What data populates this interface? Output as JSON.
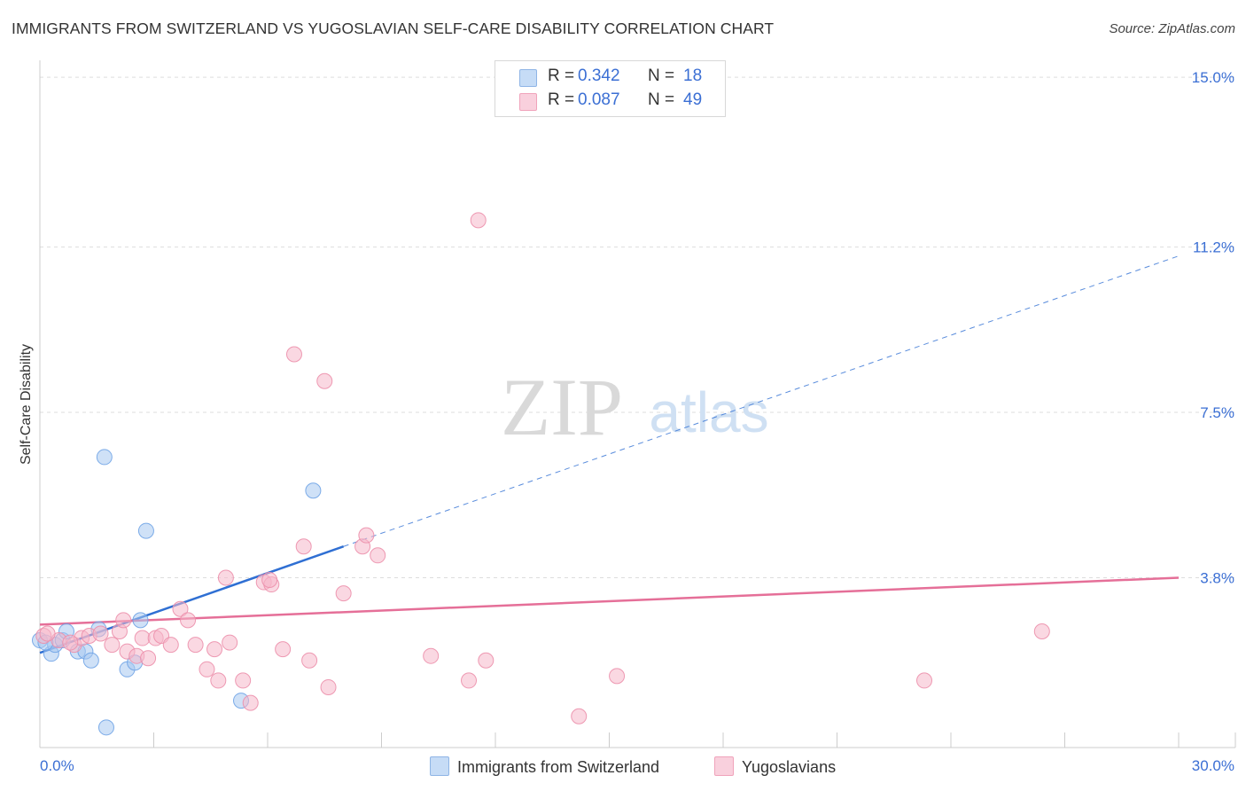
{
  "title": "IMMIGRANTS FROM SWITZERLAND VS YUGOSLAVIAN SELF-CARE DISABILITY CORRELATION CHART",
  "source": "Source: ZipAtlas.com",
  "watermark": {
    "zip": "ZIP",
    "atlas": "atlas"
  },
  "legend_top": [
    {
      "r_label": "R =",
      "r_value": "0.342",
      "n_label": "N =",
      "n_value": "18",
      "color": "#a8c8f0"
    },
    {
      "r_label": "R =",
      "r_value": "0.087",
      "n_label": "N =",
      "n_value": "49",
      "color": "#f5b8cb"
    }
  ],
  "chart_data": {
    "type": "scatter",
    "title": "IMMIGRANTS FROM SWITZERLAND VS YUGOSLAVIAN SELF-CARE DISABILITY CORRELATION CHART",
    "xlabel": "",
    "ylabel": "Self-Care Disability",
    "xlim": [
      0,
      30
    ],
    "ylim": [
      0,
      15.5
    ],
    "x_tick_labels": [
      "0.0%",
      "30.0%"
    ],
    "y_tick_values": [
      3.8,
      7.5,
      11.2,
      15.0
    ],
    "y_tick_labels": [
      "3.8%",
      "7.5%",
      "11.2%",
      "15.0%"
    ],
    "grid": true,
    "legend_position": "top-center",
    "series": [
      {
        "name": "Immigrants from Switzerland",
        "color": "#6fa3e6",
        "fill": "#a8c8f0",
        "trend_color": "#2f6fd3",
        "trend": {
          "x0": 0,
          "y0": 2.12,
          "x1": 8,
          "y1": 4.5,
          "extend_to_x": 30,
          "extend_to_y": 11.0
        },
        "points": [
          [
            0.0,
            2.4
          ],
          [
            0.3,
            2.1
          ],
          [
            0.4,
            2.3
          ],
          [
            0.6,
            2.4
          ],
          [
            0.7,
            2.6
          ],
          [
            1.0,
            2.15
          ],
          [
            1.2,
            2.15
          ],
          [
            1.35,
            1.95
          ],
          [
            1.55,
            2.65
          ],
          [
            1.7,
            6.5
          ],
          [
            1.75,
            0.45
          ],
          [
            2.3,
            1.75
          ],
          [
            2.5,
            1.9
          ],
          [
            2.65,
            2.85
          ],
          [
            2.8,
            4.85
          ],
          [
            5.3,
            1.05
          ],
          [
            7.2,
            5.75
          ],
          [
            0.15,
            2.35
          ]
        ]
      },
      {
        "name": "Yugoslavians",
        "color": "#ec8fab",
        "fill": "#f5b8cb",
        "trend_color": "#e56f98",
        "trend": {
          "x0": 0,
          "y0": 2.75,
          "x1": 30,
          "y1": 3.8
        },
        "points": [
          [
            0.1,
            2.5
          ],
          [
            0.5,
            2.4
          ],
          [
            0.9,
            2.3
          ],
          [
            1.1,
            2.45
          ],
          [
            1.3,
            2.5
          ],
          [
            1.6,
            2.55
          ],
          [
            1.9,
            2.3
          ],
          [
            2.1,
            2.6
          ],
          [
            2.2,
            2.85
          ],
          [
            2.3,
            2.15
          ],
          [
            2.55,
            2.05
          ],
          [
            2.7,
            2.45
          ],
          [
            2.85,
            2.0
          ],
          [
            3.05,
            2.45
          ],
          [
            3.2,
            2.5
          ],
          [
            3.45,
            2.3
          ],
          [
            3.7,
            3.1
          ],
          [
            3.9,
            2.85
          ],
          [
            4.1,
            2.3
          ],
          [
            4.4,
            1.75
          ],
          [
            4.6,
            2.2
          ],
          [
            4.7,
            1.5
          ],
          [
            4.9,
            3.8
          ],
          [
            5.0,
            2.35
          ],
          [
            5.35,
            1.5
          ],
          [
            5.55,
            1.0
          ],
          [
            5.9,
            3.7
          ],
          [
            6.1,
            3.65
          ],
          [
            6.4,
            2.2
          ],
          [
            6.7,
            8.8
          ],
          [
            6.95,
            4.5
          ],
          [
            7.1,
            1.95
          ],
          [
            7.5,
            8.2
          ],
          [
            7.6,
            1.35
          ],
          [
            8.0,
            3.45
          ],
          [
            8.5,
            4.5
          ],
          [
            8.6,
            4.75
          ],
          [
            8.9,
            4.3
          ],
          [
            10.3,
            2.05
          ],
          [
            11.3,
            1.5
          ],
          [
            11.55,
            11.8
          ],
          [
            11.75,
            1.95
          ],
          [
            14.2,
            0.7
          ],
          [
            15.2,
            1.6
          ],
          [
            23.3,
            1.5
          ],
          [
            26.4,
            2.6
          ],
          [
            0.2,
            2.55
          ],
          [
            6.05,
            3.75
          ],
          [
            0.8,
            2.35
          ]
        ]
      }
    ]
  }
}
